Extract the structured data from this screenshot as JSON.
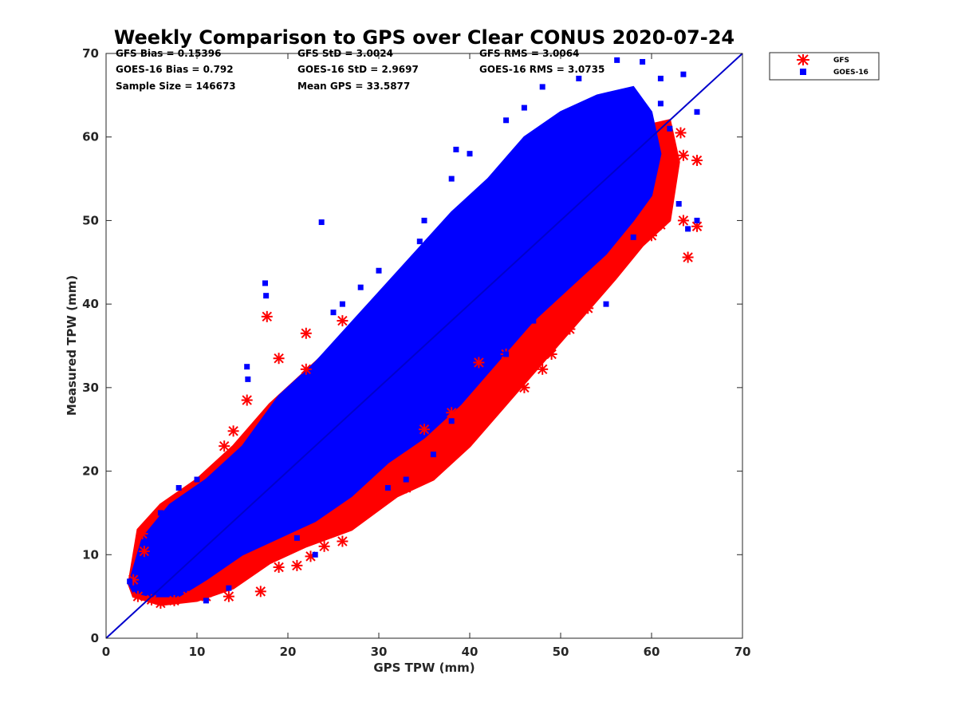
{
  "chart_data": {
    "type": "scatter",
    "title": "Weekly Comparison to GPS over Clear CONUS 2020-07-24",
    "xlabel": "GPS TPW (mm)",
    "ylabel": "Measured TPW (mm)",
    "xlim": [
      0,
      70
    ],
    "ylim": [
      0,
      70
    ],
    "xticks": [
      "0",
      "10",
      "20",
      "30",
      "40",
      "50",
      "60",
      "70"
    ],
    "yticks": [
      "0",
      "10",
      "20",
      "30",
      "40",
      "50",
      "60",
      "70"
    ],
    "grid": false,
    "legend_position": "outside-top-right",
    "stats": [
      [
        "GFS Bias = 0.15396",
        "GFS StD = 3.0024",
        "GFS RMS = 3.0064"
      ],
      [
        "GOES-16 Bias = 0.792",
        "GOES-16 StD = 2.9697",
        "GOES-16 RMS = 3.0735"
      ],
      [
        "Sample Size = 146673",
        "Mean GPS = 33.5877",
        ""
      ]
    ],
    "reference_line": {
      "name": "1:1",
      "x": [
        0,
        70
      ],
      "y": [
        0,
        70
      ],
      "color": "#0000cc"
    },
    "series": [
      {
        "name": "GFS",
        "marker": "asterisk",
        "color": "#ff0000",
        "points": [
          [
            3,
            7
          ],
          [
            3.5,
            5
          ],
          [
            4,
            12.5
          ],
          [
            4.2,
            10.4
          ],
          [
            5,
            4.6
          ],
          [
            6,
            4.2
          ],
          [
            7.5,
            4.5
          ],
          [
            9,
            5
          ],
          [
            11,
            5
          ],
          [
            13.5,
            5
          ],
          [
            17,
            5.6
          ],
          [
            19,
            8.5
          ],
          [
            21,
            8.7
          ],
          [
            22.5,
            9.8
          ],
          [
            24,
            11
          ],
          [
            26,
            11.6
          ],
          [
            27,
            14.5
          ],
          [
            28,
            15.6
          ],
          [
            30,
            16.5
          ],
          [
            33,
            18
          ],
          [
            35,
            21.5
          ],
          [
            37,
            23
          ],
          [
            38,
            22.5
          ],
          [
            40,
            24
          ],
          [
            42,
            27
          ],
          [
            43,
            29.8
          ],
          [
            45,
            32
          ],
          [
            46,
            30
          ],
          [
            48,
            32.2
          ],
          [
            49,
            34
          ],
          [
            51,
            37
          ],
          [
            53,
            39.5
          ],
          [
            55,
            43
          ],
          [
            56,
            45
          ],
          [
            57,
            47
          ],
          [
            58,
            48.5
          ],
          [
            59,
            50
          ],
          [
            60,
            48.2
          ],
          [
            61,
            49.5
          ],
          [
            62,
            57
          ],
          [
            63.5,
            50
          ],
          [
            63.5,
            57.8
          ],
          [
            64,
            45.6
          ],
          [
            65,
            49.3
          ],
          [
            65,
            57.2
          ],
          [
            63.2,
            60.5
          ],
          [
            17.7,
            38.5
          ],
          [
            19,
            33.5
          ],
          [
            13,
            23
          ],
          [
            14,
            24.8
          ],
          [
            22,
            36.5
          ],
          [
            26,
            38
          ],
          [
            15.5,
            28.5
          ],
          [
            22,
            32.2
          ],
          [
            35,
            25
          ],
          [
            38,
            27
          ],
          [
            41,
            33
          ],
          [
            44,
            34
          ],
          [
            46.5,
            33.6
          ],
          [
            50.5,
            39.6
          ]
        ]
      },
      {
        "name": "GOES-16",
        "marker": "square",
        "color": "#0000ff",
        "points": [
          [
            2.6,
            6.8
          ],
          [
            5,
            10
          ],
          [
            6,
            15
          ],
          [
            8,
            18
          ],
          [
            10,
            19
          ],
          [
            15.5,
            32.5
          ],
          [
            15.6,
            31
          ],
          [
            17.5,
            42.5
          ],
          [
            17.6,
            41
          ],
          [
            23.7,
            49.8
          ],
          [
            26,
            40
          ],
          [
            28,
            42
          ],
          [
            30,
            44
          ],
          [
            34.5,
            47.5
          ],
          [
            35,
            50
          ],
          [
            38,
            55
          ],
          [
            38.5,
            58.5
          ],
          [
            40,
            58
          ],
          [
            44,
            62
          ],
          [
            46,
            63.5
          ],
          [
            48,
            66
          ],
          [
            52,
            67
          ],
          [
            56.2,
            69.2
          ],
          [
            59,
            69
          ],
          [
            61,
            67
          ],
          [
            62,
            61
          ],
          [
            63.5,
            67.5
          ],
          [
            65,
            63
          ],
          [
            65,
            50
          ],
          [
            64,
            49
          ],
          [
            63,
            52
          ],
          [
            61,
            64
          ],
          [
            27,
            35
          ],
          [
            25,
            39
          ],
          [
            13.5,
            6
          ],
          [
            11,
            4.5
          ],
          [
            21,
            12
          ],
          [
            23,
            10
          ],
          [
            31,
            18
          ],
          [
            33,
            19
          ],
          [
            36,
            22
          ],
          [
            38,
            26
          ],
          [
            44,
            34
          ],
          [
            47,
            38
          ],
          [
            52,
            44
          ],
          [
            55,
            40
          ],
          [
            58,
            48
          ],
          [
            60,
            55
          ],
          [
            20,
            25
          ],
          [
            30,
            38
          ],
          [
            40,
            46
          ],
          [
            50,
            56
          ],
          [
            45,
            52
          ],
          [
            35,
            42
          ],
          [
            25,
            30
          ],
          [
            15,
            18
          ],
          [
            55,
            62
          ],
          [
            10,
            12
          ],
          [
            7,
            8
          ],
          [
            42,
            49
          ]
        ]
      }
    ]
  }
}
